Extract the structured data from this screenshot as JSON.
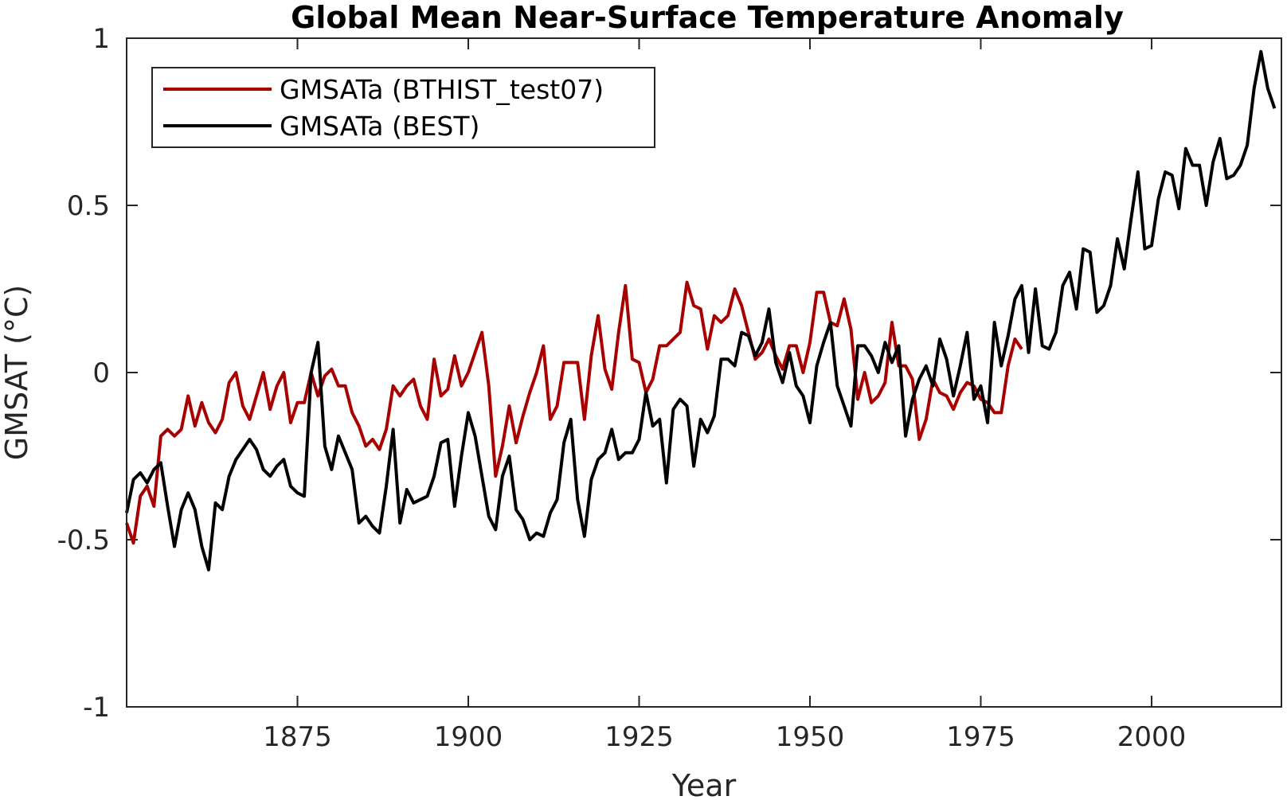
{
  "chart_data": {
    "type": "line",
    "title": "Global Mean Near-Surface Temperature Anomaly",
    "xlabel": "Year",
    "ylabel": "GMSAT (°C)",
    "xlim": [
      1850,
      2019
    ],
    "ylim": [
      -1,
      1
    ],
    "xticks": [
      1875,
      1900,
      1925,
      1950,
      1975,
      2000
    ],
    "xtick_labels": [
      "1875",
      "1900",
      "1925",
      "1950",
      "1975",
      "2000"
    ],
    "yticks": [
      1,
      0.5,
      0,
      -0.5,
      -1
    ],
    "ytick_labels": [
      "1",
      "0.5",
      "0",
      "-0.5",
      "-1"
    ],
    "grid": false,
    "legend_position": "top-left",
    "series": [
      {
        "name": "GMSATa (BTHIST_test07)",
        "color": "#a80000",
        "x_start": 1850,
        "values": [
          -0.45,
          -0.51,
          -0.37,
          -0.34,
          -0.4,
          -0.19,
          -0.17,
          -0.19,
          -0.17,
          -0.07,
          -0.16,
          -0.09,
          -0.15,
          -0.18,
          -0.14,
          -0.03,
          0.0,
          -0.1,
          -0.14,
          -0.07,
          0.0,
          -0.11,
          -0.04,
          0.0,
          -0.15,
          -0.09,
          -0.09,
          0.0,
          -0.07,
          -0.01,
          0.01,
          -0.04,
          -0.04,
          -0.12,
          -0.16,
          -0.22,
          -0.2,
          -0.23,
          -0.17,
          -0.04,
          -0.07,
          -0.04,
          -0.02,
          -0.1,
          -0.14,
          0.04,
          -0.07,
          -0.05,
          0.05,
          -0.04,
          0.0,
          0.06,
          0.12,
          -0.04,
          -0.31,
          -0.22,
          -0.1,
          -0.21,
          -0.13,
          -0.06,
          0.0,
          0.08,
          -0.14,
          -0.1,
          0.03,
          0.03,
          0.03,
          -0.14,
          0.05,
          0.17,
          0.01,
          -0.05,
          0.12,
          0.26,
          0.04,
          0.03,
          -0.06,
          -0.02,
          0.08,
          0.08,
          0.1,
          0.12,
          0.27,
          0.2,
          0.19,
          0.07,
          0.17,
          0.15,
          0.17,
          0.25,
          0.2,
          0.12,
          0.04,
          0.06,
          0.1,
          0.05,
          0.01,
          0.08,
          0.08,
          0.0,
          0.09,
          0.24,
          0.24,
          0.15,
          0.14,
          0.22,
          0.13,
          -0.08,
          0.0,
          -0.09,
          -0.07,
          -0.03,
          0.15,
          0.02,
          0.02,
          -0.02,
          -0.2,
          -0.14,
          -0.02,
          -0.06,
          -0.07,
          -0.11,
          -0.06,
          -0.03,
          -0.04,
          -0.08,
          -0.09,
          -0.12,
          -0.12,
          0.02,
          0.1,
          0.07
        ]
      },
      {
        "name": "GMSATa (BEST)",
        "color": "#000000",
        "x_start": 1850,
        "values": [
          -0.42,
          -0.32,
          -0.3,
          -0.33,
          -0.29,
          -0.27,
          -0.4,
          -0.52,
          -0.41,
          -0.36,
          -0.41,
          -0.52,
          -0.59,
          -0.39,
          -0.41,
          -0.31,
          -0.26,
          -0.23,
          -0.2,
          -0.23,
          -0.29,
          -0.31,
          -0.28,
          -0.26,
          -0.34,
          -0.36,
          -0.37,
          0.0,
          0.09,
          -0.22,
          -0.29,
          -0.19,
          -0.24,
          -0.29,
          -0.45,
          -0.43,
          -0.46,
          -0.48,
          -0.34,
          -0.17,
          -0.45,
          -0.35,
          -0.39,
          -0.38,
          -0.37,
          -0.31,
          -0.21,
          -0.2,
          -0.4,
          -0.25,
          -0.12,
          -0.19,
          -0.31,
          -0.43,
          -0.47,
          -0.31,
          -0.25,
          -0.41,
          -0.44,
          -0.5,
          -0.48,
          -0.49,
          -0.42,
          -0.38,
          -0.21,
          -0.14,
          -0.38,
          -0.49,
          -0.32,
          -0.26,
          -0.24,
          -0.17,
          -0.26,
          -0.24,
          -0.24,
          -0.2,
          -0.06,
          -0.16,
          -0.14,
          -0.33,
          -0.11,
          -0.08,
          -0.1,
          -0.28,
          -0.14,
          -0.18,
          -0.13,
          0.04,
          0.04,
          0.02,
          0.12,
          0.11,
          0.05,
          0.09,
          0.19,
          0.03,
          -0.03,
          0.06,
          -0.04,
          -0.07,
          -0.15,
          0.02,
          0.09,
          0.15,
          -0.04,
          -0.1,
          -0.16,
          0.08,
          0.08,
          0.05,
          0.0,
          0.09,
          0.03,
          0.08,
          -0.19,
          -0.08,
          -0.02,
          0.02,
          -0.04,
          0.1,
          0.04,
          -0.07,
          0.02,
          0.12,
          -0.08,
          -0.04,
          -0.15,
          0.15,
          0.02,
          0.11,
          0.22,
          0.26,
          0.06,
          0.25,
          0.08,
          0.07,
          0.12,
          0.26,
          0.3,
          0.19,
          0.37,
          0.36,
          0.18,
          0.2,
          0.26,
          0.4,
          0.31,
          0.46,
          0.6,
          0.37,
          0.38,
          0.52,
          0.6,
          0.59,
          0.49,
          0.67,
          0.62,
          0.62,
          0.5,
          0.63,
          0.7,
          0.58,
          0.59,
          0.62,
          0.68,
          0.85,
          0.96,
          0.85,
          0.79
        ]
      }
    ]
  }
}
